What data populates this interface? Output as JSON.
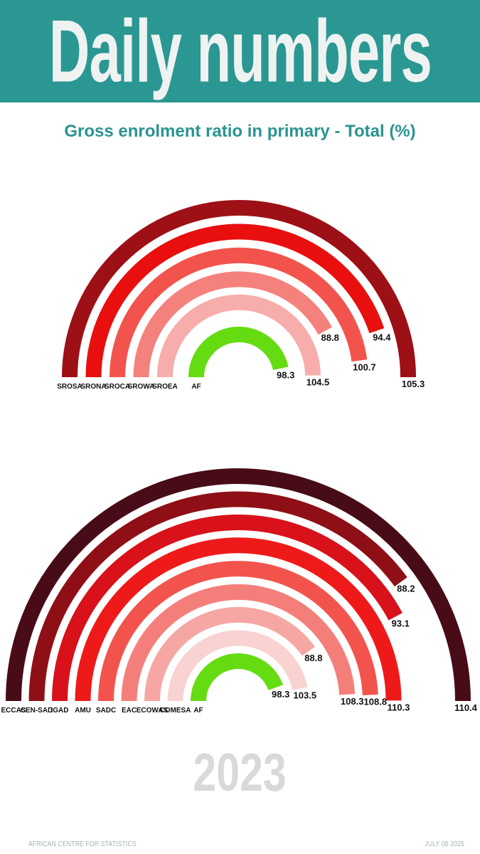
{
  "header": {
    "title": "Daily numbers",
    "background_color": "#2b9793",
    "title_color": "#eef3f2"
  },
  "subtitle": {
    "text": "Gross enrolment ratio in primary - Total (%)",
    "color": "#2a948f"
  },
  "chart_data": [
    {
      "type": "radial-bar",
      "name": "regional-offices-gauge",
      "title": "Gross enrolment ratio in primary - Total (%)",
      "unit": "%",
      "angle_range_deg": [
        0,
        180
      ],
      "scale": "sweep angle proportional to value; max value = 180 degrees",
      "categories": [
        "SROSA",
        "SRONA",
        "SROCA",
        "SROWA",
        "SROEA",
        "AF"
      ],
      "values": [
        105.3,
        94.4,
        100.7,
        88.8,
        104.5,
        98.3
      ],
      "colors": [
        "#9d1016",
        "#e90f0f",
        "#f2544d",
        "#f5817d",
        "#f7adab",
        "#65dc12"
      ],
      "value_label_color": "#111111",
      "category_label_color": "#111111"
    },
    {
      "type": "radial-bar",
      "name": "regional-communities-gauge",
      "title": "Gross enrolment ratio in primary - Total (%)",
      "unit": "%",
      "angle_range_deg": [
        0,
        180
      ],
      "scale": "sweep angle proportional to value; max value = 180 degrees",
      "categories": [
        "ECCAS",
        "CEN-SAD",
        "IGAD",
        "AMU",
        "SADC",
        "EAC",
        "ECOWAS",
        "COMESA",
        "AF"
      ],
      "values": [
        110.4,
        88.2,
        93.1,
        110.3,
        108.8,
        108.3,
        88.8,
        103.5,
        98.3
      ],
      "colors": [
        "#480c18",
        "#8e1016",
        "#d8111a",
        "#ee1a19",
        "#f2544d",
        "#f47f7a",
        "#f6a7a4",
        "#f9d3d1",
        "#65dc12"
      ],
      "value_label_color": "#111111",
      "category_label_color": "#111111"
    }
  ],
  "year_label": "2023",
  "footer": {
    "left": "AFRICAN CENTRE FOR STATISTICS",
    "right": "JULY 08 2025"
  }
}
